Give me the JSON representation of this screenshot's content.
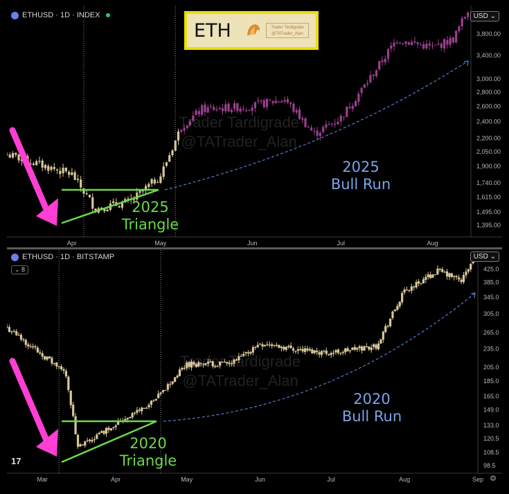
{
  "colors": {
    "background": "#000000",
    "candle_2025": "#9b3f8e",
    "candle_base": "#d9c79a",
    "triangle": "#6bd94a",
    "bull_run_text": "#79a4e8",
    "arrow": "#ff3fd3",
    "grid_text": "#b8b8b8"
  },
  "icons": {
    "coin": "ethereum-coin-icon",
    "live": "live-dot-icon",
    "brand": "tradingview-logo-icon",
    "settings": "gear-icon"
  },
  "top_panel": {
    "symbol": "ETHUSD · 1D · INDEX",
    "currency": "USD",
    "logo": {
      "text": "ETH",
      "card_line1": "Trader Tardigrade",
      "card_line2": "@TATrader_Alan"
    },
    "watermark_line1": "Trader Tardigrade",
    "watermark_line2": "@TATrader_Alan",
    "triangle_label_year": "2025",
    "triangle_label_word": "Triangle",
    "bull_label_year": "2025",
    "bull_label_words": "Bull Run"
  },
  "bottom_panel": {
    "symbol": "ETHUSD · 1D · BITSTAMP",
    "currency": "USD",
    "badge": "8",
    "brand_mark": "17",
    "watermark_line1": "Trader Tardigrade",
    "watermark_line2": "@TATrader_Alan",
    "triangle_label_year": "2020",
    "triangle_label_word": "Triangle",
    "bull_label_year": "2020",
    "bull_label_words": "Bull Run"
  },
  "chart_data": [
    {
      "type": "candlestick",
      "title": "ETHUSD · 1D · INDEX",
      "x_ticks": [
        "Apr",
        "May",
        "Jun",
        "Jul",
        "Aug"
      ],
      "y_ticks": [
        "3,800.00",
        "3,400.00",
        "3,000.00",
        "2,800.00",
        "2,600.00",
        "2,400.00",
        "2,200.00",
        "2,050.00",
        "1,900.00",
        "1,740.00",
        "1,615.00",
        "1,495.00",
        "1,395.00"
      ],
      "y_scale": "log",
      "ylim": [
        1330,
        4350
      ],
      "series": [
        {
          "name": "ETHUSD",
          "dates": [
            "2025-03-10",
            "2025-04-01",
            "2025-04-09",
            "2025-04-21",
            "2025-05-01",
            "2025-05-08",
            "2025-05-15",
            "2025-05-31",
            "2025-06-12",
            "2025-06-22",
            "2025-07-01",
            "2025-07-10",
            "2025-07-20",
            "2025-08-01",
            "2025-08-08",
            "2025-08-14"
          ],
          "close": [
            2020,
            1820,
            1520,
            1580,
            1810,
            2340,
            2560,
            2600,
            2700,
            2250,
            2450,
            2960,
            3700,
            3540,
            3700,
            4450
          ]
        }
      ],
      "annotations": [
        "2025 Triangle",
        "2025 Bull Run"
      ]
    },
    {
      "type": "candlestick",
      "title": "ETHUSD · 1D · BITSTAMP",
      "x_ticks": [
        "Mar",
        "Apr",
        "May",
        "Jun",
        "Jul",
        "Aug",
        "Sep"
      ],
      "y_ticks": [
        "425.0",
        "385.0",
        "345.0",
        "305.0",
        "265.0",
        "235.0",
        "205.0",
        "185.0",
        "165.0",
        "149.0",
        "133.0",
        "120.5",
        "108.5",
        "98.5"
      ],
      "y_scale": "log",
      "ylim": [
        95,
        470
      ],
      "series": [
        {
          "name": "ETHUSD",
          "dates": [
            "2020-02-15",
            "2020-03-01",
            "2020-03-11",
            "2020-03-16",
            "2020-04-01",
            "2020-04-17",
            "2020-05-01",
            "2020-05-20",
            "2020-06-01",
            "2020-06-20",
            "2020-07-01",
            "2020-07-20",
            "2020-08-01",
            "2020-08-15",
            "2020-08-25",
            "2020-09-01"
          ],
          "close": [
            275,
            225,
            195,
            112,
            135,
            158,
            210,
            210,
            245,
            232,
            228,
            240,
            360,
            420,
            390,
            480
          ]
        }
      ],
      "annotations": [
        "2020 Triangle",
        "2020 Bull Run"
      ]
    }
  ]
}
